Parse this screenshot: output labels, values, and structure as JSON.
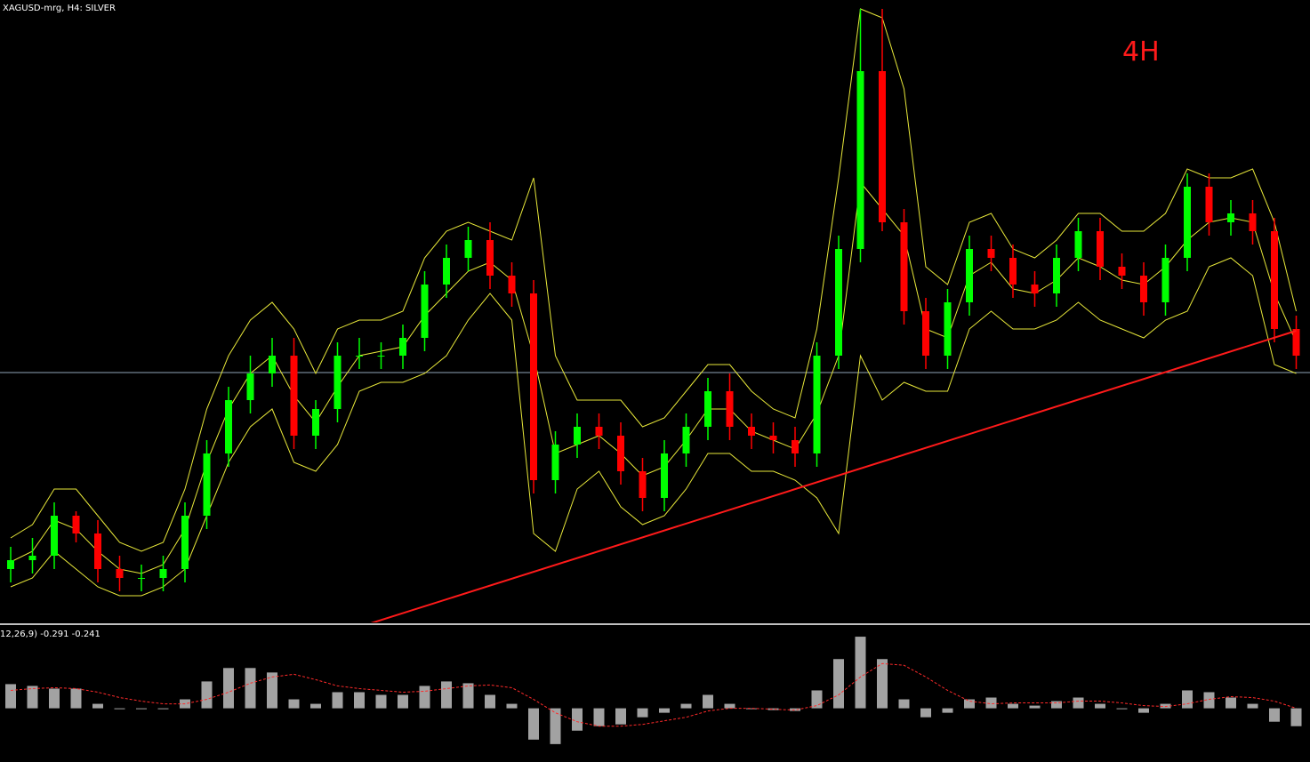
{
  "chart_data": [
    {
      "type": "candlestick",
      "title": "XAGUSD-mrg, H4:  SILVER",
      "annotation": "4H",
      "ylim": [
        0,
        700
      ],
      "up_color": "#00ff00",
      "down_color": "#ff0000",
      "band_color": "#e8e83a",
      "open": [
        60,
        70,
        75,
        120,
        100,
        60,
        50,
        50,
        60,
        120,
        190,
        250,
        280,
        300,
        210,
        240,
        300,
        300,
        300,
        320,
        380,
        410,
        430,
        390,
        370,
        160,
        200,
        220,
        210,
        170,
        140,
        190,
        220,
        260,
        220,
        210,
        205,
        190,
        300,
        420,
        620,
        450,
        350,
        300,
        360,
        420,
        410,
        380,
        370,
        410,
        440,
        400,
        390,
        360,
        410,
        490,
        450,
        460,
        440,
        330
      ],
      "high": [
        85,
        95,
        135,
        125,
        115,
        75,
        65,
        75,
        135,
        205,
        265,
        300,
        320,
        320,
        250,
        315,
        320,
        315,
        335,
        395,
        425,
        445,
        450,
        405,
        385,
        215,
        235,
        235,
        225,
        185,
        205,
        235,
        275,
        280,
        235,
        225,
        220,
        315,
        435,
        690,
        690,
        465,
        365,
        375,
        435,
        435,
        425,
        395,
        425,
        455,
        455,
        415,
        405,
        425,
        505,
        505,
        475,
        475,
        455,
        345
      ],
      "low": [
        45,
        55,
        60,
        90,
        45,
        35,
        35,
        35,
        45,
        105,
        175,
        235,
        265,
        195,
        195,
        225,
        285,
        285,
        285,
        305,
        365,
        395,
        375,
        355,
        145,
        145,
        185,
        195,
        155,
        125,
        125,
        175,
        205,
        205,
        195,
        190,
        175,
        175,
        285,
        405,
        440,
        335,
        285,
        285,
        345,
        395,
        365,
        355,
        355,
        395,
        385,
        375,
        345,
        345,
        395,
        435,
        435,
        425,
        315,
        285
      ],
      "close": [
        70,
        75,
        120,
        100,
        60,
        50,
        50,
        60,
        120,
        190,
        250,
        280,
        300,
        210,
        240,
        300,
        300,
        300,
        320,
        380,
        410,
        430,
        390,
        370,
        160,
        200,
        220,
        210,
        170,
        140,
        190,
        220,
        260,
        220,
        210,
        205,
        190,
        300,
        420,
        620,
        450,
        350,
        300,
        360,
        420,
        410,
        380,
        370,
        410,
        440,
        400,
        390,
        360,
        410,
        490,
        450,
        460,
        440,
        330,
        300
      ],
      "bands": [
        {
          "values": [
            95,
            110,
            150,
            150,
            120,
            90,
            80,
            90,
            150,
            240,
            300,
            340,
            360,
            330,
            280,
            330,
            340,
            340,
            350,
            410,
            440,
            450,
            440,
            430,
            500,
            300,
            250,
            250,
            250,
            220,
            230,
            260,
            290,
            290,
            260,
            240,
            230,
            330,
            500,
            690,
            680,
            600,
            400,
            380,
            450,
            460,
            420,
            410,
            430,
            460,
            460,
            440,
            440,
            460,
            510,
            500,
            500,
            510,
            450,
            350
          ]
        },
        {
          "values": [
            68,
            80,
            115,
            105,
            80,
            60,
            55,
            65,
            105,
            180,
            240,
            280,
            300,
            255,
            225,
            265,
            300,
            305,
            310,
            345,
            370,
            395,
            405,
            385,
            300,
            190,
            200,
            210,
            190,
            165,
            175,
            205,
            240,
            240,
            215,
            205,
            195,
            235,
            300,
            495,
            465,
            435,
            330,
            320,
            390,
            405,
            375,
            370,
            385,
            410,
            400,
            385,
            380,
            400,
            430,
            450,
            455,
            450,
            370,
            315
          ]
        },
        {
          "values": [
            40,
            50,
            80,
            60,
            40,
            30,
            30,
            40,
            60,
            120,
            180,
            220,
            240,
            180,
            170,
            200,
            260,
            270,
            270,
            280,
            300,
            340,
            370,
            340,
            100,
            80,
            150,
            170,
            130,
            110,
            120,
            150,
            190,
            190,
            170,
            170,
            160,
            140,
            100,
            300,
            250,
            270,
            260,
            260,
            330,
            350,
            330,
            330,
            340,
            360,
            340,
            330,
            320,
            340,
            350,
            400,
            410,
            390,
            290,
            280
          ]
        }
      ],
      "level": {
        "value": 281,
        "color": "#8fa3b8"
      },
      "trendline": {
        "values": [
          -129,
          328
        ],
        "color": "#ff1a1a"
      }
    },
    {
      "type": "macd",
      "title": "12,26,9) -0.291 -0.241",
      "ylim": [
        -60,
        90
      ],
      "bar_color": "#d8d8d8",
      "signal_color": "#ff2a2a",
      "values": [
        27,
        25,
        22,
        22,
        5,
        0,
        0,
        0,
        10,
        30,
        45,
        45,
        40,
        10,
        5,
        18,
        18,
        15,
        15,
        25,
        30,
        28,
        15,
        5,
        -35,
        -40,
        -25,
        -20,
        -18,
        -10,
        -5,
        5,
        15,
        5,
        0,
        -2,
        -3,
        20,
        55,
        80,
        55,
        10,
        -10,
        -5,
        10,
        12,
        5,
        3,
        8,
        12,
        5,
        0,
        -5,
        5,
        20,
        18,
        12,
        5,
        -15,
        -20
      ],
      "signal": [
        20,
        22,
        23,
        22,
        18,
        12,
        8,
        5,
        5,
        10,
        18,
        28,
        35,
        38,
        32,
        25,
        22,
        20,
        18,
        19,
        22,
        25,
        26,
        23,
        10,
        -5,
        -15,
        -20,
        -20,
        -18,
        -14,
        -10,
        -3,
        0,
        0,
        -1,
        -2,
        3,
        15,
        35,
        50,
        48,
        35,
        20,
        8,
        5,
        6,
        6,
        6,
        8,
        8,
        6,
        3,
        2,
        5,
        10,
        13,
        12,
        8,
        0
      ]
    }
  ]
}
